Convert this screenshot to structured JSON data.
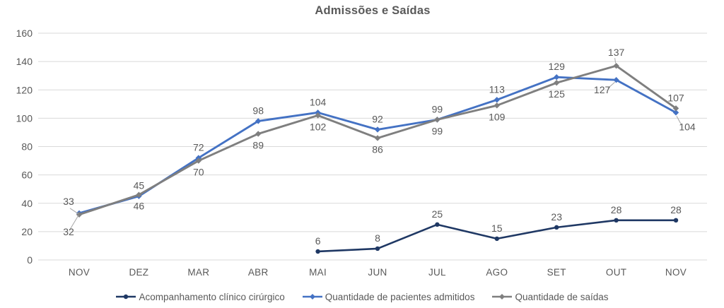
{
  "title": "Admissões e Saídas",
  "colors": {
    "title_text": "#595959",
    "axis_text": "#595959",
    "label_text": "#595959",
    "grid": "#d9d9d9",
    "leader": "#a6a6a6",
    "background": "#ffffff"
  },
  "chart_data": {
    "type": "line",
    "title": "Admissões e Saídas",
    "categories": [
      "NOV",
      "DEZ",
      "MAR",
      "ABR",
      "MAI",
      "JUN",
      "JUL",
      "AGO",
      "SET",
      "OUT",
      "NOV"
    ],
    "ylim": [
      0,
      160
    ],
    "y_ticks": [
      0,
      20,
      40,
      60,
      80,
      100,
      120,
      140,
      160
    ],
    "grid": "horizontal",
    "legend_position": "bottom",
    "series": [
      {
        "name": "Acompanhamento clínico cirúrgico",
        "color": "#1f3864",
        "marker": "circle",
        "values": [
          null,
          null,
          null,
          null,
          6,
          8,
          25,
          15,
          23,
          28,
          28
        ],
        "label_sides": [
          null,
          null,
          null,
          null,
          "above",
          "above",
          "above",
          "above",
          "above",
          "above",
          "above"
        ]
      },
      {
        "name": "Quantidade de pacientes admitidos",
        "color": "#4472c4",
        "marker": "diamond",
        "values": [
          33,
          45,
          72,
          98,
          104,
          92,
          99,
          113,
          129,
          127,
          104
        ],
        "label_sides": [
          "above-left+leader",
          "above",
          "above",
          "above",
          "above",
          "above",
          "above",
          "above",
          "above",
          "below-left+leader",
          "below+leader"
        ]
      },
      {
        "name": "Quantidade de saídas",
        "color": "#7f7f7f",
        "marker": "diamond",
        "values": [
          32,
          46,
          70,
          89,
          102,
          86,
          99,
          109,
          125,
          137,
          107
        ],
        "label_sides": [
          "below-left-far+leader",
          "below",
          "below",
          "below",
          "below",
          "below",
          "below",
          "below",
          "below",
          "above+leader",
          "above"
        ]
      }
    ]
  }
}
